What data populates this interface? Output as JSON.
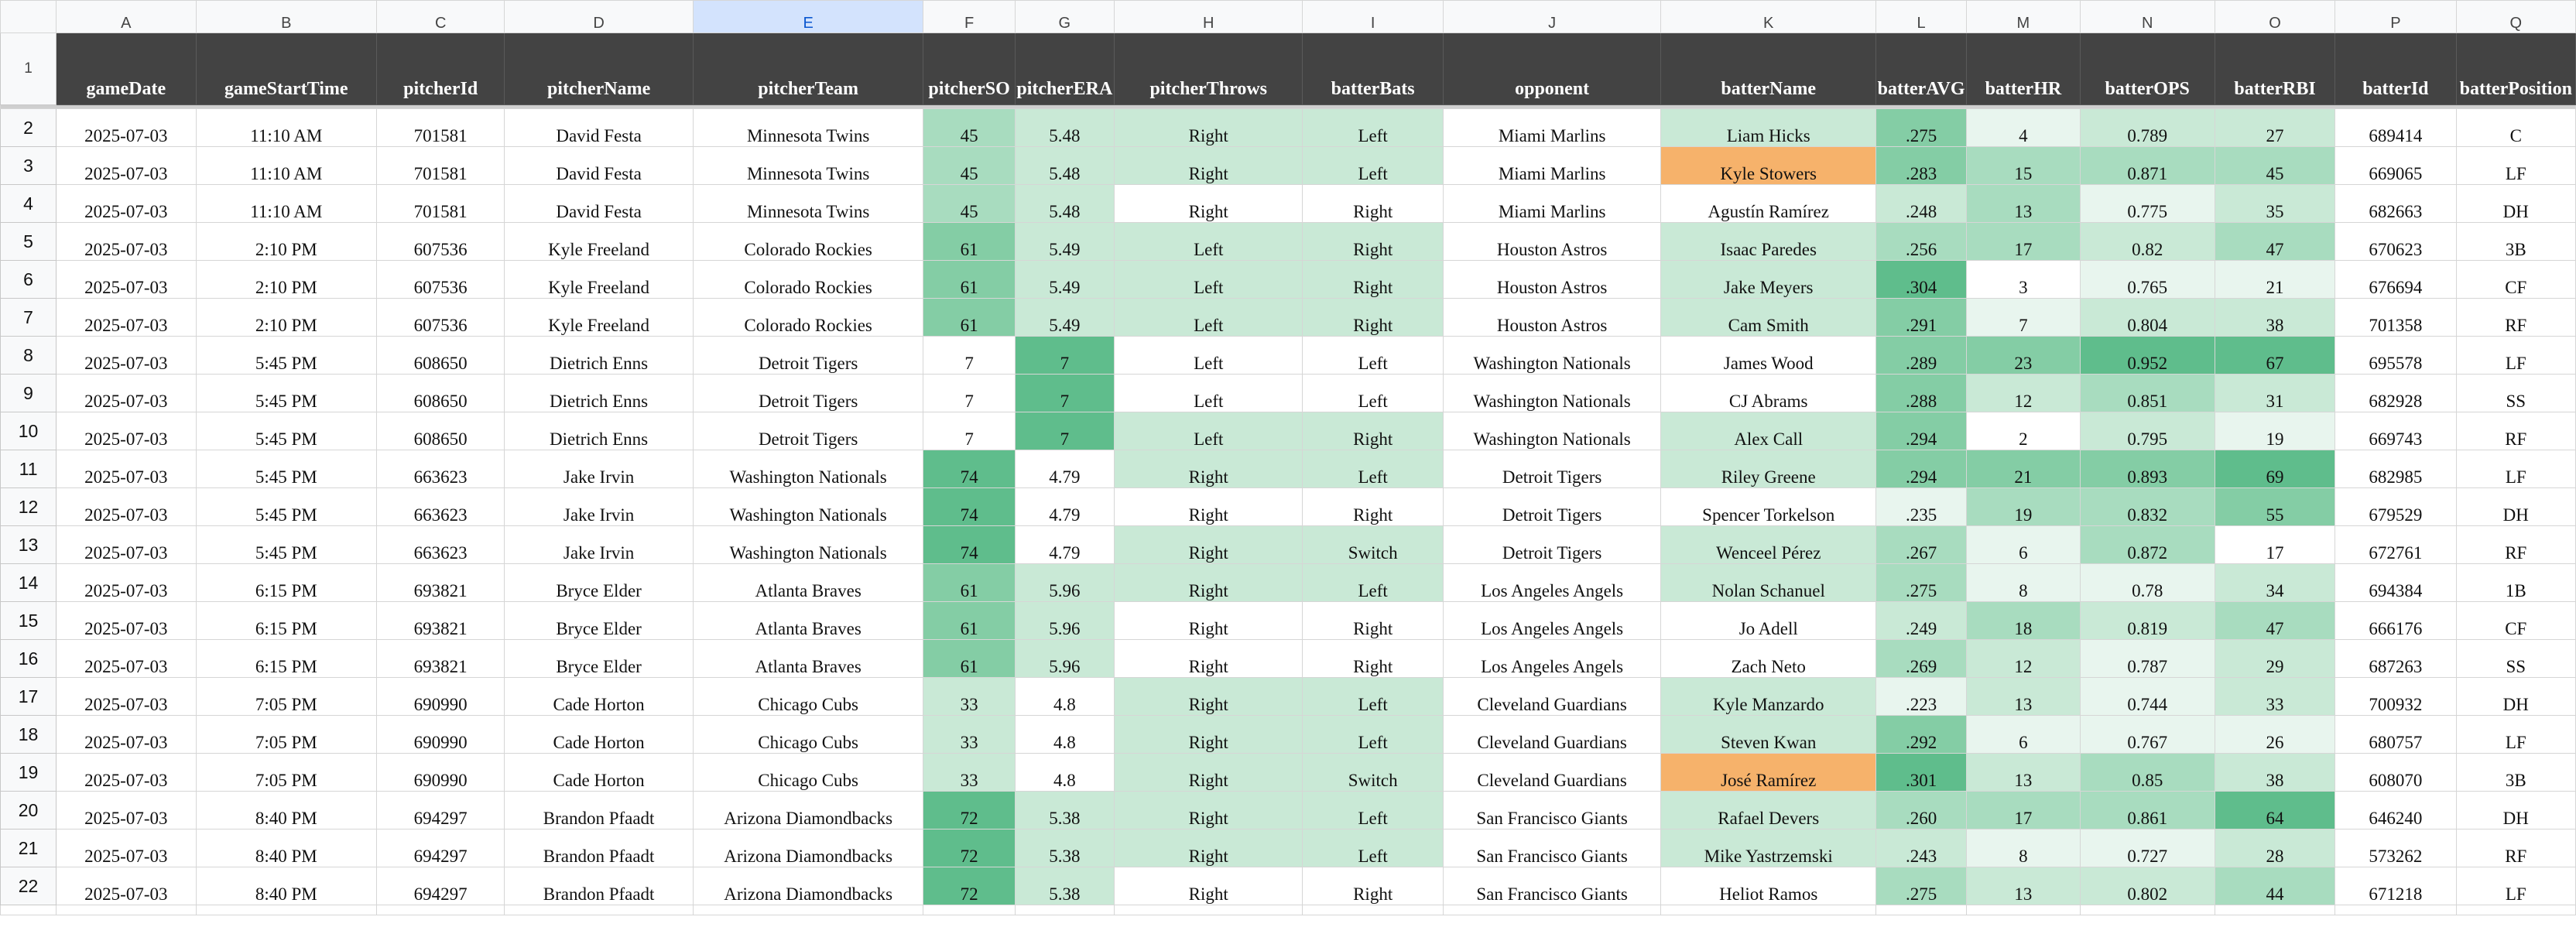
{
  "column_letters": [
    "A",
    "B",
    "C",
    "D",
    "E",
    "F",
    "G",
    "H",
    "I",
    "J",
    "K",
    "L",
    "M",
    "N",
    "O",
    "P",
    "Q"
  ],
  "selected_column": "E",
  "headers": [
    "gameDate",
    "gameStartTime",
    "pitcherId",
    "pitcherName",
    "pitcherTeam",
    "pitcherSO",
    "pitcherERA",
    "pitcherThrows",
    "batterBats",
    "opponent",
    "batterName",
    "batterAVG",
    "batterHR",
    "batterOPS",
    "batterRBI",
    "batterId",
    "batterPosition"
  ],
  "header_row_number": "1",
  "colors": {
    "header_bg": "#434343",
    "header_text": "#ffffff",
    "selected_column_bg": "#d3e3fd",
    "highlight_orange": "#f6b26b",
    "green_scale": [
      "#ffffff",
      "#e8f5ee",
      "#c9e9d6",
      "#a8dcbf",
      "#84cda5",
      "#5fbd8c"
    ]
  },
  "rows": [
    {
      "num": "2",
      "cells": [
        "2025-07-03",
        "11:10 AM",
        "701581",
        "David Festa",
        "Minnesota Twins",
        "45",
        "5.48",
        "Right",
        "Left",
        "Miami Marlins",
        "Liam Hicks",
        ".275",
        "4",
        "0.789",
        "27",
        "689414",
        "C"
      ],
      "shade": [
        0,
        0,
        0,
        0,
        0,
        3,
        2,
        2,
        2,
        0,
        2,
        4,
        1,
        2,
        2,
        0,
        0
      ]
    },
    {
      "num": "3",
      "cells": [
        "2025-07-03",
        "11:10 AM",
        "701581",
        "David Festa",
        "Minnesota Twins",
        "45",
        "5.48",
        "Right",
        "Left",
        "Miami Marlins",
        "Kyle Stowers",
        ".283",
        "15",
        "0.871",
        "45",
        "669065",
        "LF"
      ],
      "shade": [
        0,
        0,
        0,
        0,
        0,
        3,
        2,
        2,
        2,
        0,
        -1,
        4,
        3,
        3,
        3,
        0,
        0
      ]
    },
    {
      "num": "4",
      "cells": [
        "2025-07-03",
        "11:10 AM",
        "701581",
        "David Festa",
        "Minnesota Twins",
        "45",
        "5.48",
        "Right",
        "Right",
        "Miami Marlins",
        "Agustín Ramírez",
        ".248",
        "13",
        "0.775",
        "35",
        "682663",
        "DH"
      ],
      "shade": [
        0,
        0,
        0,
        0,
        0,
        3,
        2,
        0,
        0,
        0,
        0,
        2,
        3,
        1,
        2,
        0,
        0
      ]
    },
    {
      "num": "5",
      "cells": [
        "2025-07-03",
        "2:10 PM",
        "607536",
        "Kyle Freeland",
        "Colorado Rockies",
        "61",
        "5.49",
        "Left",
        "Right",
        "Houston Astros",
        "Isaac Paredes",
        ".256",
        "17",
        "0.82",
        "47",
        "670623",
        "3B"
      ],
      "shade": [
        0,
        0,
        0,
        0,
        0,
        4,
        2,
        2,
        2,
        0,
        2,
        3,
        3,
        2,
        3,
        0,
        0
      ]
    },
    {
      "num": "6",
      "cells": [
        "2025-07-03",
        "2:10 PM",
        "607536",
        "Kyle Freeland",
        "Colorado Rockies",
        "61",
        "5.49",
        "Left",
        "Right",
        "Houston Astros",
        "Jake Meyers",
        ".304",
        "3",
        "0.765",
        "21",
        "676694",
        "CF"
      ],
      "shade": [
        0,
        0,
        0,
        0,
        0,
        4,
        2,
        2,
        2,
        0,
        2,
        5,
        0,
        1,
        1,
        0,
        0
      ]
    },
    {
      "num": "7",
      "cells": [
        "2025-07-03",
        "2:10 PM",
        "607536",
        "Kyle Freeland",
        "Colorado Rockies",
        "61",
        "5.49",
        "Left",
        "Right",
        "Houston Astros",
        "Cam Smith",
        ".291",
        "7",
        "0.804",
        "38",
        "701358",
        "RF"
      ],
      "shade": [
        0,
        0,
        0,
        0,
        0,
        4,
        2,
        2,
        2,
        0,
        2,
        4,
        1,
        2,
        2,
        0,
        0
      ]
    },
    {
      "num": "8",
      "cells": [
        "2025-07-03",
        "5:45 PM",
        "608650",
        "Dietrich Enns",
        "Detroit Tigers",
        "7",
        "7",
        "Left",
        "Left",
        "Washington Nationals",
        "James Wood",
        ".289",
        "23",
        "0.952",
        "67",
        "695578",
        "LF"
      ],
      "shade": [
        0,
        0,
        0,
        0,
        0,
        0,
        5,
        0,
        0,
        0,
        0,
        4,
        4,
        5,
        5,
        0,
        0
      ]
    },
    {
      "num": "9",
      "cells": [
        "2025-07-03",
        "5:45 PM",
        "608650",
        "Dietrich Enns",
        "Detroit Tigers",
        "7",
        "7",
        "Left",
        "Left",
        "Washington Nationals",
        "CJ Abrams",
        ".288",
        "12",
        "0.851",
        "31",
        "682928",
        "SS"
      ],
      "shade": [
        0,
        0,
        0,
        0,
        0,
        0,
        5,
        0,
        0,
        0,
        0,
        4,
        2,
        3,
        2,
        0,
        0
      ]
    },
    {
      "num": "10",
      "cells": [
        "2025-07-03",
        "5:45 PM",
        "608650",
        "Dietrich Enns",
        "Detroit Tigers",
        "7",
        "7",
        "Left",
        "Right",
        "Washington Nationals",
        "Alex Call",
        ".294",
        "2",
        "0.795",
        "19",
        "669743",
        "RF"
      ],
      "shade": [
        0,
        0,
        0,
        0,
        0,
        0,
        5,
        2,
        2,
        0,
        2,
        4,
        0,
        2,
        1,
        0,
        0
      ]
    },
    {
      "num": "11",
      "cells": [
        "2025-07-03",
        "5:45 PM",
        "663623",
        "Jake Irvin",
        "Washington Nationals",
        "74",
        "4.79",
        "Right",
        "Left",
        "Detroit Tigers",
        "Riley Greene",
        ".294",
        "21",
        "0.893",
        "69",
        "682985",
        "LF"
      ],
      "shade": [
        0,
        0,
        0,
        0,
        0,
        5,
        0,
        2,
        2,
        0,
        2,
        4,
        4,
        4,
        5,
        0,
        0
      ]
    },
    {
      "num": "12",
      "cells": [
        "2025-07-03",
        "5:45 PM",
        "663623",
        "Jake Irvin",
        "Washington Nationals",
        "74",
        "4.79",
        "Right",
        "Right",
        "Detroit Tigers",
        "Spencer Torkelson",
        ".235",
        "19",
        "0.832",
        "55",
        "679529",
        "DH"
      ],
      "shade": [
        0,
        0,
        0,
        0,
        0,
        5,
        0,
        0,
        0,
        0,
        0,
        1,
        3,
        3,
        4,
        0,
        0
      ]
    },
    {
      "num": "13",
      "cells": [
        "2025-07-03",
        "5:45 PM",
        "663623",
        "Jake Irvin",
        "Washington Nationals",
        "74",
        "4.79",
        "Right",
        "Switch",
        "Detroit Tigers",
        "Wenceel Pérez",
        ".267",
        "6",
        "0.872",
        "17",
        "672761",
        "RF"
      ],
      "shade": [
        0,
        0,
        0,
        0,
        0,
        5,
        0,
        2,
        2,
        0,
        2,
        3,
        1,
        3,
        0,
        0,
        0
      ]
    },
    {
      "num": "14",
      "cells": [
        "2025-07-03",
        "6:15 PM",
        "693821",
        "Bryce Elder",
        "Atlanta Braves",
        "61",
        "5.96",
        "Right",
        "Left",
        "Los Angeles Angels",
        "Nolan Schanuel",
        ".275",
        "8",
        "0.78",
        "34",
        "694384",
        "1B"
      ],
      "shade": [
        0,
        0,
        0,
        0,
        0,
        4,
        2,
        2,
        2,
        0,
        2,
        3,
        1,
        1,
        2,
        0,
        0
      ]
    },
    {
      "num": "15",
      "cells": [
        "2025-07-03",
        "6:15 PM",
        "693821",
        "Bryce Elder",
        "Atlanta Braves",
        "61",
        "5.96",
        "Right",
        "Right",
        "Los Angeles Angels",
        "Jo Adell",
        ".249",
        "18",
        "0.819",
        "47",
        "666176",
        "CF"
      ],
      "shade": [
        0,
        0,
        0,
        0,
        0,
        4,
        2,
        0,
        0,
        0,
        0,
        2,
        3,
        2,
        3,
        0,
        0
      ]
    },
    {
      "num": "16",
      "cells": [
        "2025-07-03",
        "6:15 PM",
        "693821",
        "Bryce Elder",
        "Atlanta Braves",
        "61",
        "5.96",
        "Right",
        "Right",
        "Los Angeles Angels",
        "Zach Neto",
        ".269",
        "12",
        "0.787",
        "29",
        "687263",
        "SS"
      ],
      "shade": [
        0,
        0,
        0,
        0,
        0,
        4,
        2,
        0,
        0,
        0,
        0,
        3,
        2,
        1,
        2,
        0,
        0
      ]
    },
    {
      "num": "17",
      "cells": [
        "2025-07-03",
        "7:05 PM",
        "690990",
        "Cade Horton",
        "Chicago Cubs",
        "33",
        "4.8",
        "Right",
        "Left",
        "Cleveland Guardians",
        "Kyle Manzardo",
        ".223",
        "13",
        "0.744",
        "33",
        "700932",
        "DH"
      ],
      "shade": [
        0,
        0,
        0,
        0,
        0,
        2,
        0,
        2,
        2,
        0,
        2,
        1,
        2,
        1,
        2,
        0,
        0
      ]
    },
    {
      "num": "18",
      "cells": [
        "2025-07-03",
        "7:05 PM",
        "690990",
        "Cade Horton",
        "Chicago Cubs",
        "33",
        "4.8",
        "Right",
        "Left",
        "Cleveland Guardians",
        "Steven Kwan",
        ".292",
        "6",
        "0.767",
        "26",
        "680757",
        "LF"
      ],
      "shade": [
        0,
        0,
        0,
        0,
        0,
        2,
        0,
        2,
        2,
        0,
        2,
        4,
        1,
        1,
        1,
        0,
        0
      ]
    },
    {
      "num": "19",
      "cells": [
        "2025-07-03",
        "7:05 PM",
        "690990",
        "Cade Horton",
        "Chicago Cubs",
        "33",
        "4.8",
        "Right",
        "Switch",
        "Cleveland Guardians",
        "José Ramírez",
        ".301",
        "13",
        "0.85",
        "38",
        "608070",
        "3B"
      ],
      "shade": [
        0,
        0,
        0,
        0,
        0,
        2,
        0,
        2,
        2,
        0,
        -1,
        5,
        2,
        3,
        2,
        0,
        0
      ]
    },
    {
      "num": "20",
      "cells": [
        "2025-07-03",
        "8:40 PM",
        "694297",
        "Brandon Pfaadt",
        "Arizona Diamondbacks",
        "72",
        "5.38",
        "Right",
        "Left",
        "San Francisco Giants",
        "Rafael Devers",
        ".260",
        "17",
        "0.861",
        "64",
        "646240",
        "DH"
      ],
      "shade": [
        0,
        0,
        0,
        0,
        0,
        5,
        2,
        2,
        2,
        0,
        2,
        3,
        3,
        3,
        5,
        0,
        0
      ]
    },
    {
      "num": "21",
      "cells": [
        "2025-07-03",
        "8:40 PM",
        "694297",
        "Brandon Pfaadt",
        "Arizona Diamondbacks",
        "72",
        "5.38",
        "Right",
        "Left",
        "San Francisco Giants",
        "Mike Yastrzemski",
        ".243",
        "8",
        "0.727",
        "28",
        "573262",
        "RF"
      ],
      "shade": [
        0,
        0,
        0,
        0,
        0,
        5,
        2,
        2,
        2,
        0,
        2,
        2,
        1,
        1,
        2,
        0,
        0
      ]
    },
    {
      "num": "22",
      "cells": [
        "2025-07-03",
        "8:40 PM",
        "694297",
        "Brandon Pfaadt",
        "Arizona Diamondbacks",
        "72",
        "5.38",
        "Right",
        "Right",
        "San Francisco Giants",
        "Heliot Ramos",
        ".275",
        "13",
        "0.802",
        "44",
        "671218",
        "LF"
      ],
      "shade": [
        0,
        0,
        0,
        0,
        0,
        5,
        2,
        0,
        0,
        0,
        0,
        3,
        2,
        2,
        3,
        0,
        0
      ]
    }
  ]
}
